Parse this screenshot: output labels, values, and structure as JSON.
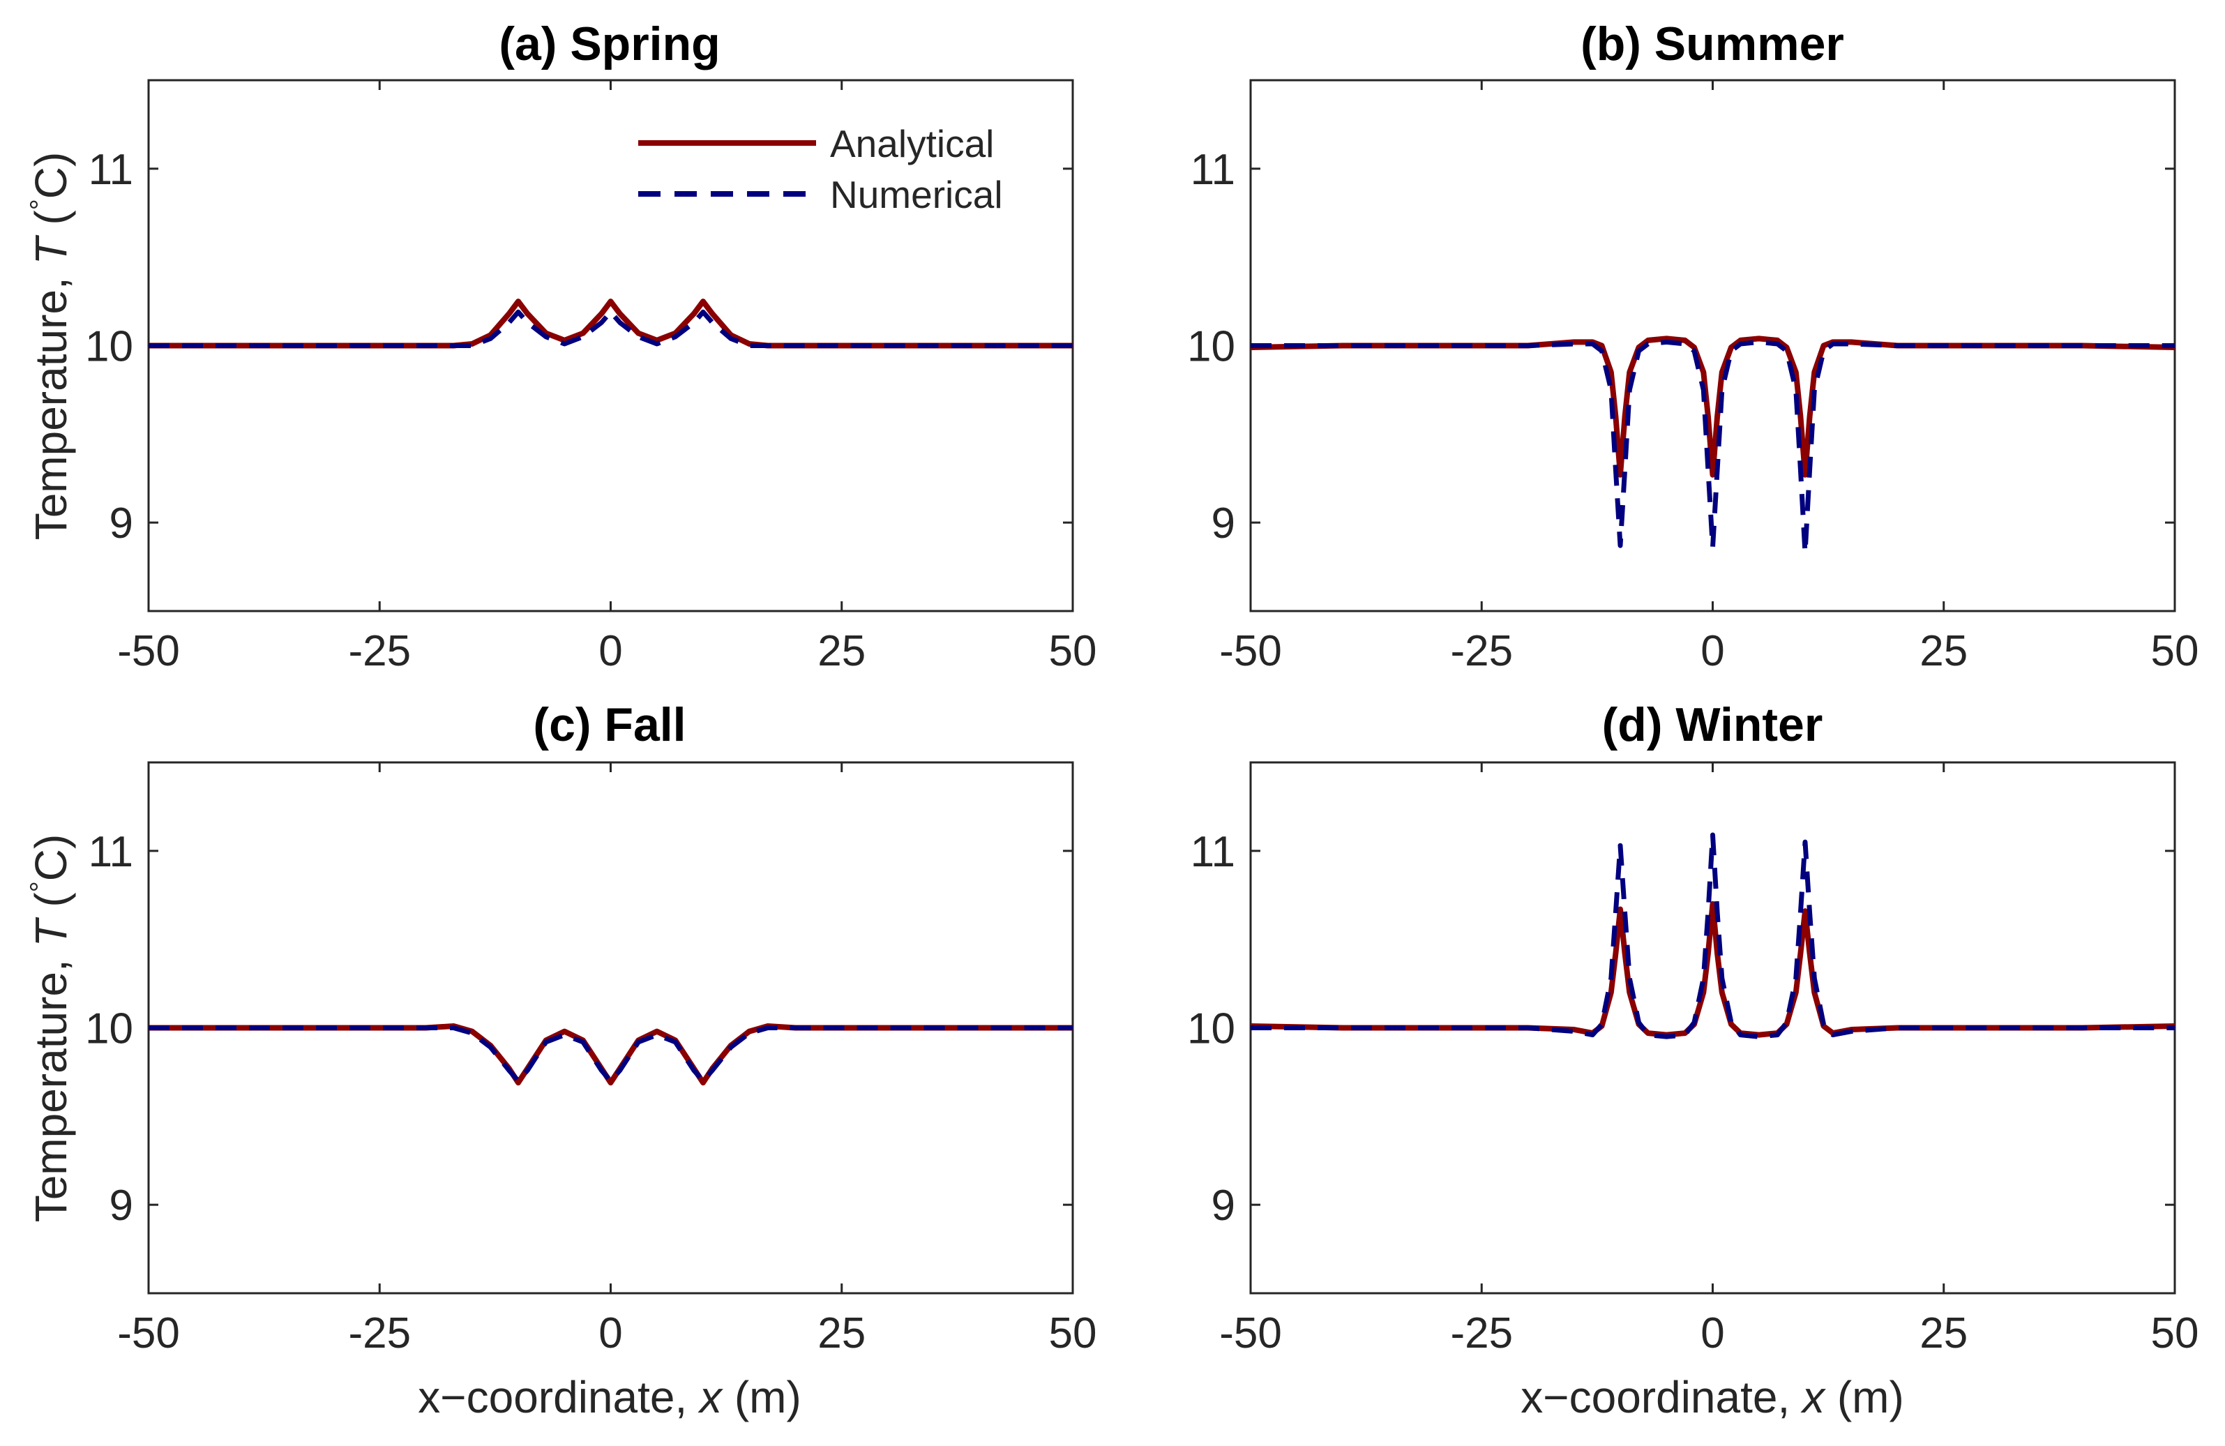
{
  "chart_data": [
    {
      "type": "line",
      "title": "(a) Spring",
      "xlabel": "",
      "ylabel_prefix": "Temperature, ",
      "ylabel_var": "T",
      "ylabel_unit_open": " (",
      "ylabel_degree": "°",
      "ylabel_unit_close": "C)",
      "xlim": [
        -50,
        50
      ],
      "ylim": [
        8.5,
        11.5
      ],
      "xticks": [
        "-50",
        "-25",
        "0",
        "25",
        "50"
      ],
      "yticks": [
        "9",
        "10",
        "11"
      ],
      "legend": {
        "position": "top-right",
        "entries": [
          "Analytical",
          "Numerical"
        ]
      },
      "series": [
        {
          "name": "Analytical",
          "style": "solid",
          "color": "#8b0000",
          "x": [
            -50,
            -20,
            -17,
            -15,
            -13,
            -11,
            -10,
            -9,
            -7,
            -5,
            -3,
            -1,
            0,
            1,
            3,
            5,
            7,
            9,
            10,
            11,
            13,
            15,
            17,
            20,
            50
          ],
          "y": [
            10.0,
            10.0,
            10.0,
            10.01,
            10.06,
            10.18,
            10.25,
            10.18,
            10.07,
            10.03,
            10.07,
            10.18,
            10.25,
            10.18,
            10.07,
            10.03,
            10.07,
            10.18,
            10.25,
            10.18,
            10.06,
            10.01,
            10.0,
            10.0,
            10.0
          ]
        },
        {
          "name": "Numerical",
          "style": "dashed",
          "color": "#00007f",
          "x": [
            -50,
            -20,
            -17,
            -15,
            -13,
            -11,
            -10,
            -9,
            -7,
            -5,
            -3,
            -1,
            0,
            1,
            3,
            5,
            7,
            9,
            10,
            11,
            13,
            15,
            17,
            20,
            50
          ],
          "y": [
            10.0,
            10.0,
            10.0,
            10.0,
            10.04,
            10.13,
            10.19,
            10.13,
            10.05,
            10.01,
            10.05,
            10.13,
            10.19,
            10.13,
            10.05,
            10.01,
            10.05,
            10.13,
            10.19,
            10.13,
            10.04,
            10.0,
            10.0,
            10.0,
            10.0
          ]
        }
      ]
    },
    {
      "type": "line",
      "title": "(b) Summer",
      "xlabel": "",
      "ylabel_prefix": "",
      "xlim": [
        -50,
        50
      ],
      "ylim": [
        8.5,
        11.5
      ],
      "xticks": [
        "-50",
        "-25",
        "0",
        "25",
        "50"
      ],
      "yticks": [
        "9",
        "10",
        "11"
      ],
      "series": [
        {
          "name": "Analytical",
          "style": "solid",
          "color": "#8b0000",
          "x": [
            -50,
            -40,
            -20,
            -15,
            -13,
            -12,
            -11,
            -10.5,
            -10,
            -9.5,
            -9,
            -8,
            -7,
            -5,
            -3,
            -2,
            -1,
            -0.5,
            0,
            0.5,
            1,
            2,
            3,
            5,
            7,
            8,
            9,
            9.5,
            10,
            10.5,
            11,
            12,
            13,
            15,
            20,
            40,
            50
          ],
          "y": [
            9.99,
            10.0,
            10.0,
            10.02,
            10.02,
            10.0,
            9.85,
            9.6,
            9.27,
            9.6,
            9.85,
            9.99,
            10.03,
            10.04,
            10.03,
            9.99,
            9.85,
            9.6,
            9.27,
            9.6,
            9.85,
            9.99,
            10.03,
            10.04,
            10.03,
            9.99,
            9.85,
            9.6,
            9.27,
            9.6,
            9.85,
            10.0,
            10.02,
            10.02,
            10.0,
            10.0,
            9.99
          ]
        },
        {
          "name": "Numerical",
          "style": "dashed",
          "color": "#00007f",
          "x": [
            -50,
            -40,
            -20,
            -15,
            -13,
            -12,
            -11,
            -10.5,
            -10,
            -9.5,
            -9,
            -8,
            -7,
            -5,
            -3,
            -2,
            -1,
            -0.5,
            0,
            0.5,
            1,
            2,
            3,
            5,
            7,
            8,
            9,
            9.5,
            10,
            10.5,
            11,
            12,
            13,
            15,
            20,
            40,
            50
          ],
          "y": [
            10.0,
            10.0,
            10.0,
            10.01,
            10.01,
            9.97,
            9.75,
            9.3,
            8.87,
            9.3,
            9.75,
            9.97,
            10.01,
            10.02,
            10.01,
            9.97,
            9.75,
            9.3,
            8.86,
            9.3,
            9.75,
            9.97,
            10.01,
            10.02,
            10.01,
            9.97,
            9.75,
            9.3,
            8.83,
            9.3,
            9.75,
            9.97,
            10.01,
            10.01,
            10.0,
            10.0,
            10.0
          ]
        }
      ]
    },
    {
      "type": "line",
      "title": "(c) Fall",
      "xlabel": "",
      "ylabel_prefix": "Temperature, ",
      "ylabel_var": "T",
      "ylabel_unit_open": " (",
      "ylabel_degree": "°",
      "ylabel_unit_close": "C)",
      "xlim": [
        -50,
        50
      ],
      "ylim": [
        8.5,
        11.5
      ],
      "xticks": [
        "-50",
        "-25",
        "0",
        "25",
        "50"
      ],
      "yticks": [
        "9",
        "10",
        "11"
      ],
      "series": [
        {
          "name": "Analytical",
          "style": "solid",
          "color": "#8b0000",
          "x": [
            -50,
            -20,
            -17,
            -15,
            -13,
            -11,
            -10,
            -9,
            -7,
            -5,
            -3,
            -1,
            0,
            1,
            3,
            5,
            7,
            9,
            10,
            11,
            13,
            15,
            17,
            20,
            50
          ],
          "y": [
            10.0,
            10.0,
            10.01,
            9.98,
            9.9,
            9.77,
            9.69,
            9.77,
            9.93,
            9.98,
            9.93,
            9.77,
            9.69,
            9.77,
            9.93,
            9.98,
            9.93,
            9.77,
            9.69,
            9.77,
            9.9,
            9.98,
            10.01,
            10.0,
            10.0
          ]
        },
        {
          "name": "Numerical",
          "style": "dashed",
          "color": "#00007f",
          "x": [
            -50,
            -20,
            -17,
            -15,
            -13,
            -11,
            -10,
            -9,
            -7,
            -5,
            -3,
            -1,
            0,
            1,
            3,
            5,
            7,
            9,
            10,
            11,
            13,
            15,
            17,
            20,
            50
          ],
          "y": [
            10.0,
            10.0,
            10.0,
            9.97,
            9.89,
            9.76,
            9.7,
            9.76,
            9.92,
            9.96,
            9.92,
            9.76,
            9.7,
            9.76,
            9.92,
            9.96,
            9.92,
            9.76,
            9.7,
            9.76,
            9.89,
            9.97,
            10.0,
            10.0,
            10.0
          ]
        }
      ]
    },
    {
      "type": "line",
      "title": "(d) Winter",
      "xlabel_prefix": "x−coordinate, ",
      "xlabel_var": "x",
      "xlabel_unit": " (m)",
      "ylabel_prefix": "",
      "xlim": [
        -50,
        50
      ],
      "ylim": [
        8.5,
        11.5
      ],
      "xticks": [
        "-50",
        "-25",
        "0",
        "25",
        "50"
      ],
      "yticks": [
        "9",
        "10",
        "11"
      ],
      "series": [
        {
          "name": "Analytical",
          "style": "solid",
          "color": "#8b0000",
          "x": [
            -50,
            -40,
            -20,
            -15,
            -13,
            -12,
            -11,
            -10.5,
            -10,
            -9.5,
            -9,
            -8,
            -7,
            -5,
            -3,
            -2,
            -1,
            -0.5,
            0,
            0.5,
            1,
            2,
            3,
            5,
            7,
            8,
            9,
            9.5,
            10,
            10.5,
            11,
            12,
            13,
            15,
            20,
            40,
            50
          ],
          "y": [
            10.01,
            10.0,
            10.0,
            9.99,
            9.97,
            10.01,
            10.2,
            10.42,
            10.67,
            10.42,
            10.2,
            10.02,
            9.97,
            9.96,
            9.97,
            10.02,
            10.2,
            10.42,
            10.7,
            10.42,
            10.2,
            10.02,
            9.97,
            9.96,
            9.97,
            10.02,
            10.2,
            10.42,
            10.66,
            10.42,
            10.2,
            10.01,
            9.97,
            9.99,
            10.0,
            10.0,
            10.01
          ]
        },
        {
          "name": "Numerical",
          "style": "dashed",
          "color": "#00007f",
          "x": [
            -50,
            -40,
            -20,
            -15,
            -13,
            -12,
            -11,
            -10.5,
            -10,
            -9.5,
            -9,
            -8,
            -7,
            -5,
            -3,
            -2,
            -1,
            -0.5,
            0,
            0.5,
            1,
            2,
            3,
            5,
            7,
            8,
            9,
            9.5,
            10,
            10.5,
            11,
            12,
            13,
            15,
            20,
            40,
            50
          ],
          "y": [
            10.0,
            10.0,
            10.0,
            9.98,
            9.96,
            10.02,
            10.28,
            10.65,
            11.03,
            10.65,
            10.28,
            10.03,
            9.96,
            9.95,
            9.96,
            10.03,
            10.28,
            10.65,
            11.09,
            10.65,
            10.28,
            10.03,
            9.96,
            9.95,
            9.96,
            10.03,
            10.28,
            10.65,
            11.05,
            10.65,
            10.28,
            10.02,
            9.96,
            9.98,
            10.0,
            10.0,
            10.0
          ]
        }
      ]
    }
  ]
}
